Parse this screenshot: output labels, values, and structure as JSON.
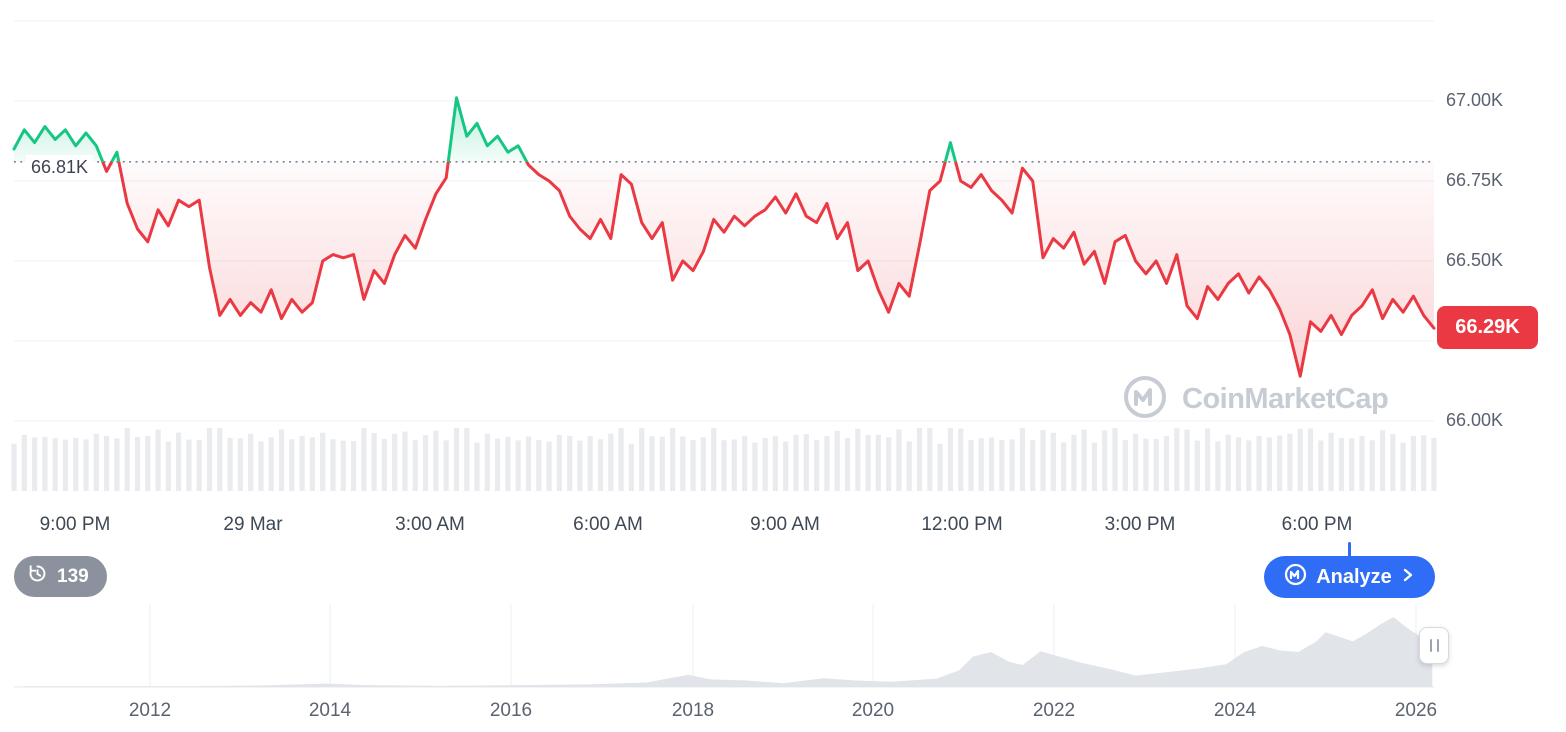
{
  "chart_data": {
    "type": "area",
    "baseline_value": 66.81,
    "baseline_label": "66.81K",
    "current_price_label": "66.29K",
    "series": [
      {
        "name": "price",
        "values": [
          66.85,
          66.91,
          66.87,
          66.92,
          66.88,
          66.91,
          66.86,
          66.9,
          66.86,
          66.78,
          66.84,
          66.68,
          66.6,
          66.56,
          66.66,
          66.61,
          66.69,
          66.67,
          66.69,
          66.48,
          66.33,
          66.38,
          66.33,
          66.37,
          66.34,
          66.41,
          66.32,
          66.38,
          66.34,
          66.37,
          66.5,
          66.52,
          66.51,
          66.52,
          66.38,
          66.47,
          66.43,
          66.52,
          66.58,
          66.54,
          66.63,
          66.71,
          66.76,
          67.01,
          66.89,
          66.93,
          66.86,
          66.89,
          66.84,
          66.86,
          66.8,
          66.77,
          66.75,
          66.72,
          66.64,
          66.6,
          66.57,
          66.63,
          66.57,
          66.77,
          66.74,
          66.62,
          66.57,
          66.62,
          66.44,
          66.5,
          66.47,
          66.53,
          66.63,
          66.59,
          66.64,
          66.61,
          66.64,
          66.66,
          66.7,
          66.65,
          66.71,
          66.64,
          66.62,
          66.68,
          66.57,
          66.62,
          66.47,
          66.5,
          66.41,
          66.34,
          66.43,
          66.39,
          66.55,
          66.72,
          66.75,
          66.87,
          66.75,
          66.73,
          66.77,
          66.72,
          66.69,
          66.65,
          66.79,
          66.75,
          66.51,
          66.57,
          66.54,
          66.59,
          66.49,
          66.53,
          66.43,
          66.56,
          66.58,
          66.5,
          66.46,
          66.5,
          66.43,
          66.52,
          66.36,
          66.32,
          66.42,
          66.38,
          66.43,
          66.46,
          66.4,
          66.45,
          66.41,
          66.35,
          66.27,
          66.14,
          66.31,
          66.28,
          66.33,
          66.27,
          66.33,
          66.36,
          66.41,
          66.32,
          66.38,
          66.34,
          66.39,
          66.33,
          66.29
        ]
      }
    ],
    "y_axis": {
      "ticks": [
        {
          "label": "67.00K",
          "value": 67.0
        },
        {
          "label": "66.75K",
          "value": 66.75
        },
        {
          "label": "66.50K",
          "value": 66.5
        },
        {
          "label": "66.00K",
          "value": 66.0
        }
      ],
      "range": [
        65.95,
        67.25
      ]
    },
    "x_axis": {
      "labels": [
        "9:00 PM",
        "29 Mar",
        "3:00 AM",
        "6:00 AM",
        "9:00 AM",
        "12:00 PM",
        "3:00 PM",
        "6:00 PM"
      ]
    },
    "colors": {
      "up": "#16c784",
      "down": "#ea3943",
      "badge_bg": "#ea3943",
      "analyze_blue": "#2f6df6",
      "volume_bar": "#e9ebee",
      "timeline_fill": "#e1e4e9",
      "baseline_dot": "#757b85"
    },
    "timeline": {
      "type": "area",
      "year_labels": [
        "2012",
        "2014",
        "2016",
        "2018",
        "2020",
        "2022",
        "2024",
        "2026"
      ],
      "points_year": [
        2010.6,
        2011.5,
        2012.5,
        2013.2,
        2013.95,
        2014.4,
        2015.2,
        2016.1,
        2016.9,
        2017.5,
        2017.95,
        2018.2,
        2018.6,
        2019.0,
        2019.45,
        2019.8,
        2020.2,
        2020.7,
        2020.95,
        2021.1,
        2021.3,
        2021.5,
        2021.65,
        2021.85,
        2022.0,
        2022.3,
        2022.6,
        2022.9,
        2023.2,
        2023.6,
        2023.9,
        2024.1,
        2024.3,
        2024.5,
        2024.7,
        2024.9,
        2025.0,
        2025.15,
        2025.3,
        2025.45,
        2025.6,
        2025.75,
        2025.9,
        2026.05,
        2026.18
      ],
      "points_value": [
        0.01,
        0.01,
        0.012,
        0.02,
        0.045,
        0.025,
        0.015,
        0.025,
        0.035,
        0.06,
        0.16,
        0.1,
        0.085,
        0.05,
        0.115,
        0.085,
        0.07,
        0.11,
        0.22,
        0.4,
        0.46,
        0.33,
        0.29,
        0.47,
        0.42,
        0.32,
        0.24,
        0.15,
        0.19,
        0.245,
        0.3,
        0.46,
        0.54,
        0.48,
        0.46,
        0.6,
        0.72,
        0.66,
        0.6,
        0.7,
        0.82,
        0.92,
        0.78,
        0.66,
        0.58
      ]
    }
  },
  "watermark": {
    "text": "CoinMarketCap"
  },
  "controls": {
    "history_count": "139",
    "analyze_label": "Analyze"
  }
}
